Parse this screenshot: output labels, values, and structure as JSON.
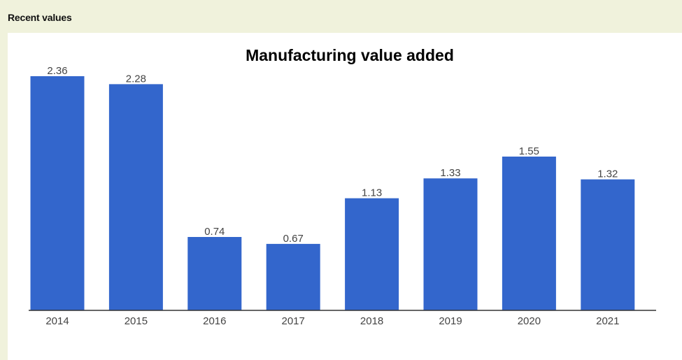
{
  "section": {
    "label": "Recent values"
  },
  "chart_data": {
    "type": "bar",
    "title": "Manufacturing value added",
    "categories": [
      "2014",
      "2015",
      "2016",
      "2017",
      "2018",
      "2019",
      "2020",
      "2021"
    ],
    "values": [
      2.36,
      2.28,
      0.74,
      0.67,
      1.13,
      1.33,
      1.55,
      1.32
    ],
    "data_labels": [
      "2.36",
      "2.28",
      "0.74",
      "0.67",
      "1.13",
      "1.33",
      "1.55",
      "1.32"
    ],
    "xlabel": "",
    "ylabel": "",
    "ylim": [
      0,
      2.36
    ],
    "grid": false,
    "legend": "none",
    "bar_color": "#3366cc",
    "background_color": "#ffffff",
    "page_background_color": "#f0f2dc"
  }
}
